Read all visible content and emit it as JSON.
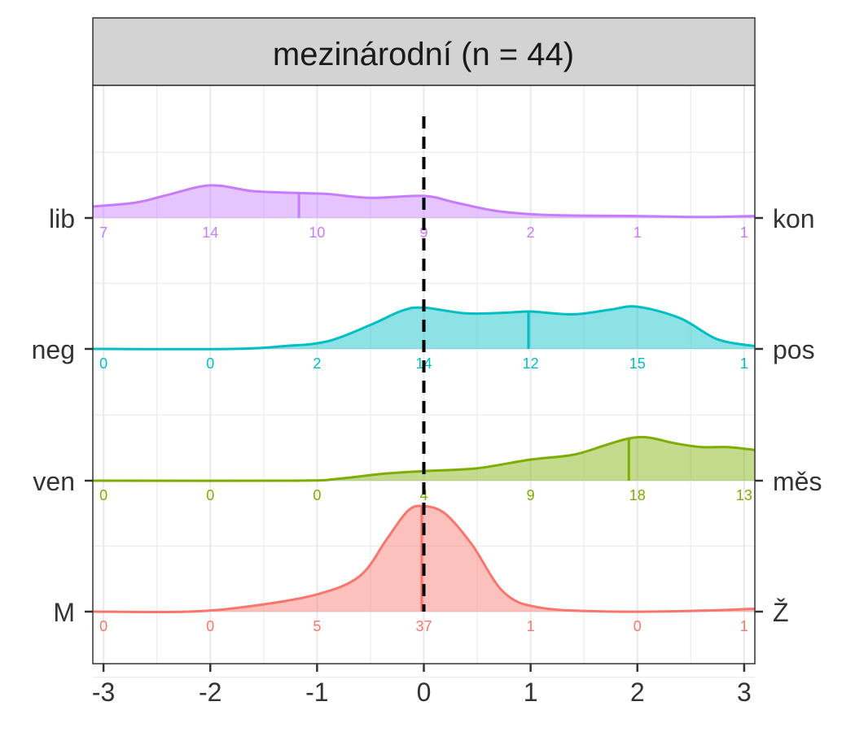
{
  "chart_data": {
    "type": "area",
    "title": "mezinárodní (n = 44)",
    "xlabel": "",
    "ylabel": "",
    "xlim": [
      -3.1,
      3.1
    ],
    "x_ticks": [
      -3,
      -2,
      -1,
      0,
      1,
      2,
      3
    ],
    "x_tick_labels": [
      "-3",
      "-2",
      "-1",
      "0",
      "1",
      "2",
      "3"
    ],
    "reference_line_x": 0,
    "grid": true,
    "series": [
      {
        "left_label": "lib",
        "right_label": "kon",
        "color": "#C77CFF",
        "mean": -1.17,
        "counts": [
          "7",
          "14",
          "10",
          "9",
          "2",
          "1",
          "1"
        ],
        "density": [
          [
            -3.1,
            0.12
          ],
          [
            -2.7,
            0.16
          ],
          [
            -2.4,
            0.24
          ],
          [
            -2.0,
            0.34
          ],
          [
            -1.6,
            0.28
          ],
          [
            -1.17,
            0.26
          ],
          [
            -0.9,
            0.25
          ],
          [
            -0.5,
            0.21
          ],
          [
            0,
            0.23
          ],
          [
            0.3,
            0.16
          ],
          [
            0.7,
            0.07
          ],
          [
            1.2,
            0.03
          ],
          [
            2.0,
            0.02
          ],
          [
            2.6,
            0.01
          ],
          [
            3.1,
            0.02
          ]
        ]
      },
      {
        "left_label": "neg",
        "right_label": "pos",
        "color": "#00BFC4",
        "mean": 0.98,
        "counts": [
          "0",
          "0",
          "2",
          "14",
          "12",
          "15",
          "1"
        ],
        "density": [
          [
            -3.1,
            0.0
          ],
          [
            -1.8,
            0.0
          ],
          [
            -1.3,
            0.03
          ],
          [
            -0.9,
            0.08
          ],
          [
            -0.5,
            0.25
          ],
          [
            -0.2,
            0.4
          ],
          [
            0,
            0.43
          ],
          [
            0.4,
            0.37
          ],
          [
            0.8,
            0.38
          ],
          [
            1.0,
            0.39
          ],
          [
            1.4,
            0.36
          ],
          [
            1.75,
            0.41
          ],
          [
            2.0,
            0.44
          ],
          [
            2.4,
            0.32
          ],
          [
            2.75,
            0.1
          ],
          [
            3.1,
            0.03
          ]
        ]
      },
      {
        "left_label": "ven",
        "right_label": "měs",
        "color": "#7CAE00",
        "mean": 1.92,
        "counts": [
          "0",
          "0",
          "0",
          "4",
          "9",
          "18",
          "13"
        ],
        "density": [
          [
            -3.1,
            0.0
          ],
          [
            -1.2,
            0.0
          ],
          [
            -0.8,
            0.02
          ],
          [
            -0.4,
            0.07
          ],
          [
            0,
            0.1
          ],
          [
            0.5,
            0.13
          ],
          [
            1.0,
            0.22
          ],
          [
            1.4,
            0.27
          ],
          [
            1.7,
            0.37
          ],
          [
            1.92,
            0.44
          ],
          [
            2.1,
            0.45
          ],
          [
            2.35,
            0.39
          ],
          [
            2.6,
            0.35
          ],
          [
            2.85,
            0.35
          ],
          [
            3.1,
            0.32
          ]
        ]
      },
      {
        "left_label": "M",
        "right_label": "Ž",
        "color": "#F8766D",
        "mean": -0.02,
        "counts": [
          "0",
          "0",
          "5",
          "37",
          "1",
          "0",
          "1"
        ],
        "density": [
          [
            -3.1,
            0.0
          ],
          [
            -2.2,
            0.0
          ],
          [
            -1.6,
            0.06
          ],
          [
            -1.0,
            0.18
          ],
          [
            -0.6,
            0.37
          ],
          [
            -0.35,
            0.75
          ],
          [
            -0.15,
            1.05
          ],
          [
            0,
            1.1
          ],
          [
            0.2,
            1.02
          ],
          [
            0.45,
            0.7
          ],
          [
            0.75,
            0.2
          ],
          [
            1.1,
            0.04
          ],
          [
            1.8,
            0.0
          ],
          [
            2.6,
            0.01
          ],
          [
            3.1,
            0.03
          ]
        ]
      }
    ]
  }
}
